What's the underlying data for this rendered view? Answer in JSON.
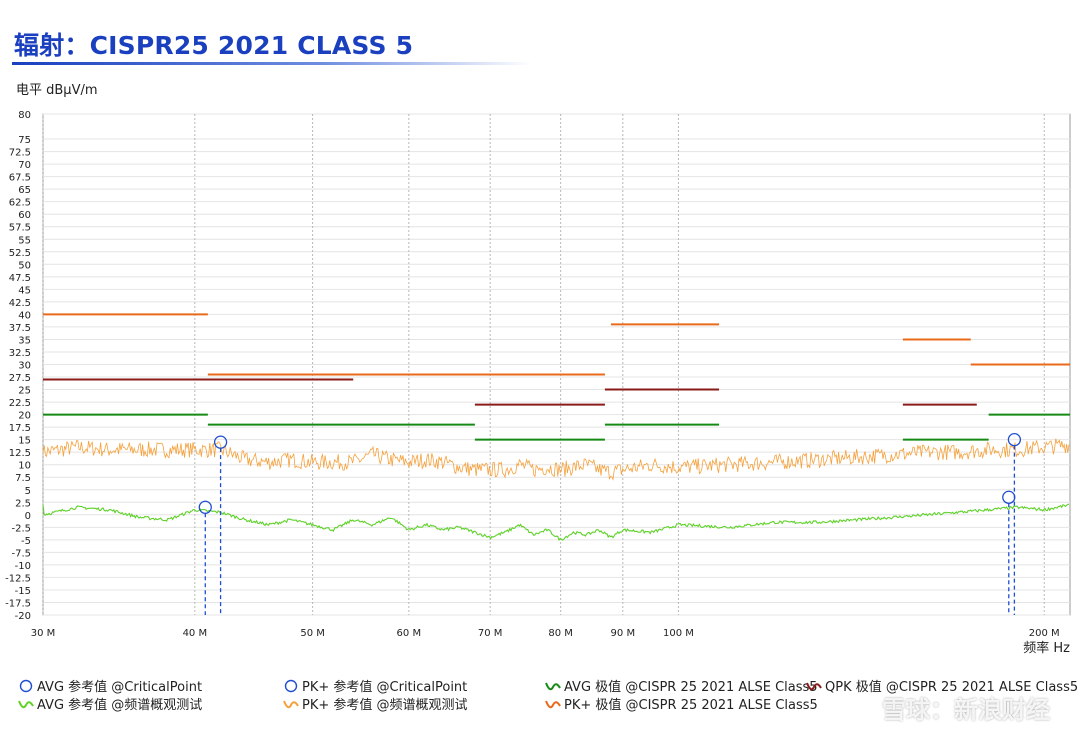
{
  "page": {
    "title": "辐射：CISPR25 2021 CLASS 5",
    "ylabel": "电平 dBµV/m",
    "watermark": "雪球：新浪财经"
  },
  "legend": [
    {
      "name": "legend-avg-critical",
      "label": "AVG 参考值 @CriticalPoint",
      "icon": "circle-icon",
      "color": "#1f4fd1"
    },
    {
      "name": "legend-pk-critical",
      "label": "PK+ 参考值 @CriticalPoint",
      "icon": "circle-icon",
      "color": "#1f4fd1"
    },
    {
      "name": "legend-avg-limit",
      "label": "AVG 极值 @CISPR 25 2021 ALSE Class5",
      "icon": "wave-icon",
      "color": "#158a15"
    },
    {
      "name": "legend-qpk-limit",
      "label": "QPK 极值 @CISPR 25 2021 ALSE Class5",
      "icon": "wave-icon",
      "color": "#8b1a1a"
    },
    {
      "name": "legend-avg-scan",
      "label": "AVG 参考值 @频谱概观测试",
      "icon": "wave-icon",
      "color": "#5fd22a"
    },
    {
      "name": "legend-pk-scan",
      "label": "PK+ 参考值 @频谱概观测试",
      "icon": "wave-icon",
      "color": "#f5a13c"
    },
    {
      "name": "legend-pk-limit",
      "label": "PK+ 极值 @CISPR 25 2021 ALSE Class5",
      "icon": "wave-icon",
      "color": "#e86a1a"
    }
  ],
  "chart_data": {
    "type": "line",
    "xscale": "log",
    "xlim": [
      30,
      210
    ],
    "ylim": [
      -20,
      80
    ],
    "grid": true,
    "xlabel": "频率 Hz",
    "ylabel": "电平 dBµV/m",
    "xticks": [
      {
        "value": 30,
        "label": "30 M"
      },
      {
        "value": 40,
        "label": "40 M"
      },
      {
        "value": 50,
        "label": "50 M"
      },
      {
        "value": 60,
        "label": "60 M"
      },
      {
        "value": 70,
        "label": "70 M"
      },
      {
        "value": 80,
        "label": "80 M"
      },
      {
        "value": 90,
        "label": "90 M"
      },
      {
        "value": 100,
        "label": "100 M"
      },
      {
        "value": 200,
        "label": "200 M"
      }
    ],
    "yticks": [
      "80",
      "75",
      "72.5",
      "70",
      "67.5",
      "65",
      "62.5",
      "60",
      "57.5",
      "55",
      "52.5",
      "50",
      "47.5",
      "45",
      "42.5",
      "40",
      "37.5",
      "35",
      "32.5",
      "30",
      "27.5",
      "25",
      "22.5",
      "20",
      "17.5",
      "15",
      "12.5",
      "10",
      "7.5",
      "5",
      "2.5",
      "0",
      "-2.5",
      "-5",
      "-7.5",
      "-10",
      "-12.5",
      "-15",
      "-17.5",
      "-20"
    ],
    "limit_lines": [
      {
        "series": "PK+ 极值 @CISPR 25 2021 ALSE Class5",
        "color": "#e86a1a",
        "segments": [
          [
            30,
            41,
            40
          ],
          [
            41,
            87,
            28
          ],
          [
            88,
            108,
            38
          ],
          [
            153,
            174,
            35
          ],
          [
            174,
            210,
            30
          ]
        ]
      },
      {
        "series": "QPK 极值 @CISPR 25 2021 ALSE Class5",
        "color": "#8b1a1a",
        "segments": [
          [
            30,
            54,
            27
          ],
          [
            68,
            87,
            22
          ],
          [
            87,
            108,
            25
          ],
          [
            153,
            176,
            22
          ]
        ]
      },
      {
        "series": "AVG 极值 @CISPR 25 2021 ALSE Class5",
        "color": "#158a15",
        "segments": [
          [
            30,
            41,
            20
          ],
          [
            41,
            68,
            18
          ],
          [
            68,
            87,
            15
          ],
          [
            87,
            108,
            18
          ],
          [
            153,
            180,
            15
          ],
          [
            180,
            210,
            20
          ]
        ]
      }
    ],
    "series": [
      {
        "name": "PK+ 参考值 @频谱概观测试",
        "color": "#f5a13c",
        "x": [
          30,
          32,
          34,
          36,
          38,
          40,
          42,
          44,
          46,
          48,
          50,
          52,
          54,
          56,
          58,
          60,
          62,
          64,
          66,
          68,
          70,
          72,
          74,
          76,
          78,
          80,
          82,
          84,
          86,
          88,
          90,
          95,
          100,
          110,
          120,
          130,
          140,
          150,
          160,
          170,
          180,
          190,
          200,
          210
        ],
        "y": [
          12.5,
          13.5,
          13,
          13,
          13,
          13,
          13,
          11,
          10.5,
          11,
          10.5,
          10.5,
          10.5,
          12,
          11,
          10.5,
          11,
          10.5,
          9.5,
          9,
          9,
          9,
          10,
          9,
          9.5,
          9,
          9.5,
          10,
          9,
          8.5,
          9,
          10,
          9.5,
          10,
          10.5,
          11,
          11.5,
          12,
          12.5,
          12.5,
          13,
          13,
          13.5,
          14
        ]
      },
      {
        "name": "AVG 参考值 @频谱概观测试",
        "color": "#5fd22a",
        "x": [
          30,
          32,
          34,
          36,
          38,
          40,
          42,
          44,
          46,
          48,
          50,
          52,
          54,
          56,
          58,
          60,
          62,
          64,
          66,
          68,
          70,
          72,
          74,
          76,
          78,
          80,
          82,
          84,
          86,
          88,
          90,
          95,
          100,
          110,
          120,
          130,
          140,
          150,
          160,
          170,
          180,
          190,
          200,
          210
        ],
        "y": [
          0,
          1.5,
          1,
          -0.5,
          -1,
          1,
          0.5,
          -1,
          -2,
          -1,
          -2,
          -3,
          -1,
          -2,
          -0.5,
          -3,
          -2,
          -3,
          -2.5,
          -3.5,
          -4.5,
          -3.5,
          -2,
          -4,
          -3,
          -5,
          -3.5,
          -4,
          -3,
          -4.5,
          -3,
          -3.5,
          -2,
          -2.5,
          -1.5,
          -1.5,
          -1,
          -0.5,
          0,
          0.5,
          1,
          1.5,
          1,
          2
        ]
      }
    ],
    "markers": [
      {
        "series": "AVG 参考值 @CriticalPoint",
        "x": 40.8,
        "y": 1.5
      },
      {
        "series": "PK+ 参考值 @CriticalPoint",
        "x": 42.0,
        "y": 14.5
      },
      {
        "series": "AVG 参考值 @CriticalPoint",
        "x": 187,
        "y": 3.5
      },
      {
        "series": "PK+ 参考值 @CriticalPoint",
        "x": 189,
        "y": 15
      }
    ]
  }
}
